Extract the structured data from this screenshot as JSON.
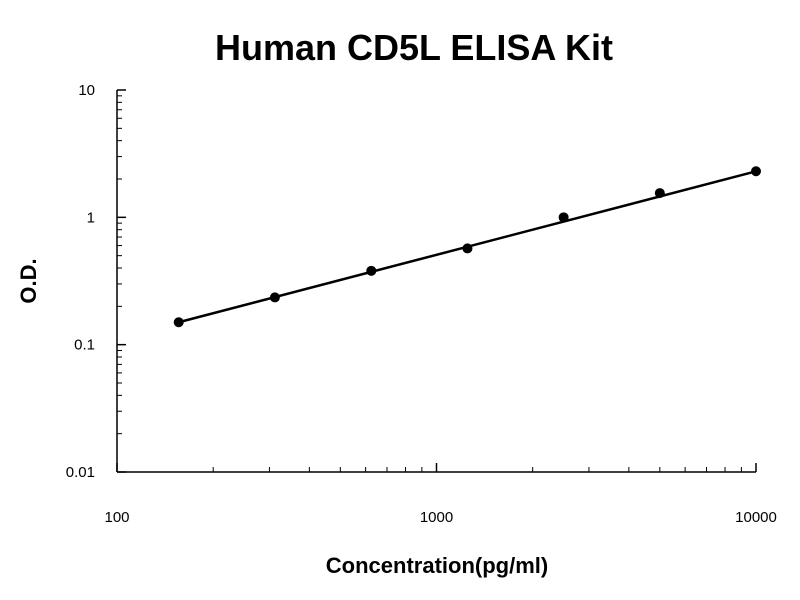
{
  "chart_data": {
    "type": "scatter",
    "title": "Human CD5L ELISA Kit",
    "xlabel": "Concentration(pg/ml)",
    "ylabel": "O.D.",
    "x_scale": "log",
    "y_scale": "log",
    "xlim": [
      100,
      10000
    ],
    "ylim": [
      0.01,
      10
    ],
    "x_ticks": [
      100,
      1000,
      10000
    ],
    "x_tick_labels": [
      "100",
      "1000",
      "10000"
    ],
    "y_ticks": [
      0.01,
      0.1,
      1,
      10
    ],
    "y_tick_labels": [
      "0.01",
      "0.1",
      "1",
      "10"
    ],
    "grid": false,
    "series": [
      {
        "x": [
          156,
          312,
          625,
          1250,
          2500,
          5000,
          10000
        ],
        "y": [
          0.15,
          0.235,
          0.38,
          0.57,
          1.0,
          1.55,
          2.3
        ]
      }
    ],
    "fit_line": {
      "x": [
        156,
        10000
      ],
      "y": [
        0.15,
        2.3
      ]
    },
    "colors": {
      "marker": "#000000",
      "line": "#000000",
      "axis": "#000000"
    }
  }
}
